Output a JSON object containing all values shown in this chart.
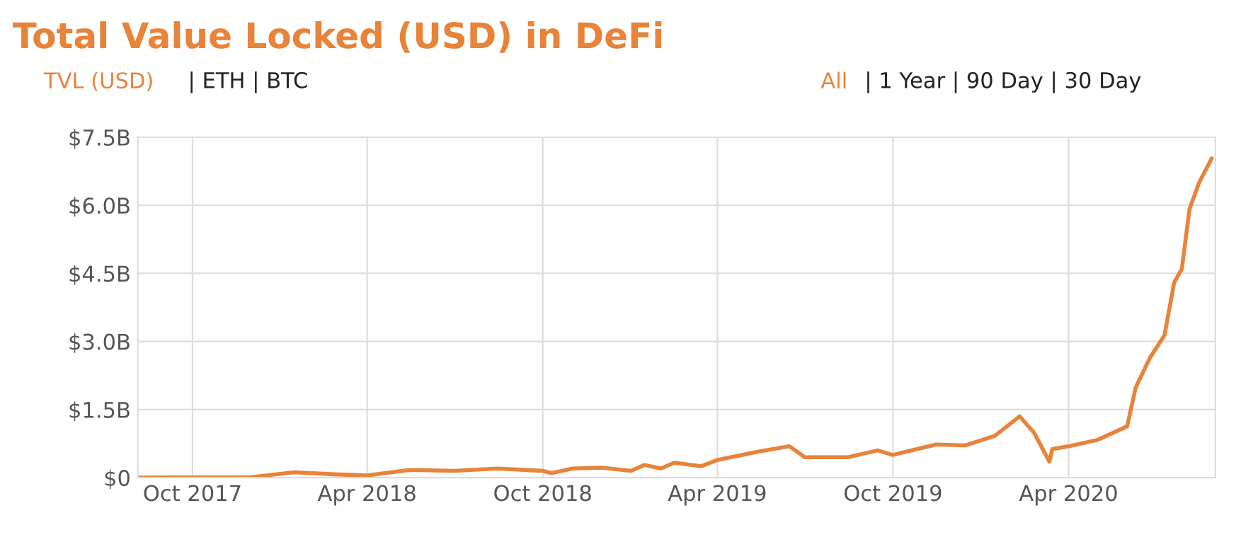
{
  "chart_data": {
    "type": "line",
    "title": "Total Value Locked (USD) in DeFi",
    "annotations": [
      "TVL (USD)",
      "| ETH | BTC",
      "All",
      "| 1 Year | 90 Day | 30 Day"
    ],
    "x": [
      "2017-08-05",
      "2017-12-01",
      "2018-01-15",
      "2018-03-01",
      "2018-04-01",
      "2018-05-15",
      "2018-07-01",
      "2018-08-15",
      "2018-10-01",
      "2018-10-10",
      "2018-11-01",
      "2018-12-01",
      "2019-01-01",
      "2019-01-15",
      "2019-02-01",
      "2019-02-15",
      "2019-03-15",
      "2019-04-01",
      "2019-05-15",
      "2019-06-15",
      "2019-07-01",
      "2019-08-15",
      "2019-09-15",
      "2019-10-01",
      "2019-11-15",
      "2019-12-15",
      "2020-01-15",
      "2020-02-10",
      "2020-02-25",
      "2020-03-12",
      "2020-03-15",
      "2020-04-01",
      "2020-05-01",
      "2020-06-01",
      "2020-06-10",
      "2020-06-25",
      "2020-07-10",
      "2020-07-20",
      "2020-07-28",
      "2020-08-05",
      "2020-08-15",
      "2020-08-28"
    ],
    "series": [
      {
        "color": "#e8833a",
        "values": [
          0.0,
          0.01,
          0.12,
          0.07,
          0.05,
          0.17,
          0.15,
          0.2,
          0.15,
          0.1,
          0.2,
          0.22,
          0.15,
          0.28,
          0.2,
          0.33,
          0.25,
          0.39,
          0.58,
          0.69,
          0.45,
          0.45,
          0.6,
          0.5,
          0.73,
          0.71,
          0.92,
          1.35,
          0.99,
          0.35,
          0.63,
          0.69,
          0.83,
          1.13,
          1.99,
          2.65,
          3.14,
          4.3,
          4.6,
          5.92,
          6.5,
          7.03
        ]
      }
    ],
    "xlim": [
      "2017-08-05",
      "2020-09-01"
    ],
    "xticks": [
      {
        "value": "2017-10-01",
        "label": "Oct 2017"
      },
      {
        "value": "2018-04-01",
        "label": "Apr 2018"
      },
      {
        "value": "2018-10-01",
        "label": "Oct 2018"
      },
      {
        "value": "2019-04-01",
        "label": "Apr 2019"
      },
      {
        "value": "2019-10-01",
        "label": "Oct 2019"
      },
      {
        "value": "2020-04-01",
        "label": "Apr 2020"
      }
    ],
    "ylim": [
      0,
      7.5
    ],
    "yticks": [
      {
        "value": 0,
        "label": "$0"
      },
      {
        "value": 1.5,
        "label": "$1.5B"
      },
      {
        "value": 3,
        "label": "$3.0B"
      },
      {
        "value": 4.5,
        "label": "$4.5B"
      },
      {
        "value": 6,
        "label": "$6.0B"
      },
      {
        "value": 7.5,
        "label": "$7.5B"
      }
    ],
    "grid": true,
    "line_style": "solid",
    "marker": "none"
  }
}
